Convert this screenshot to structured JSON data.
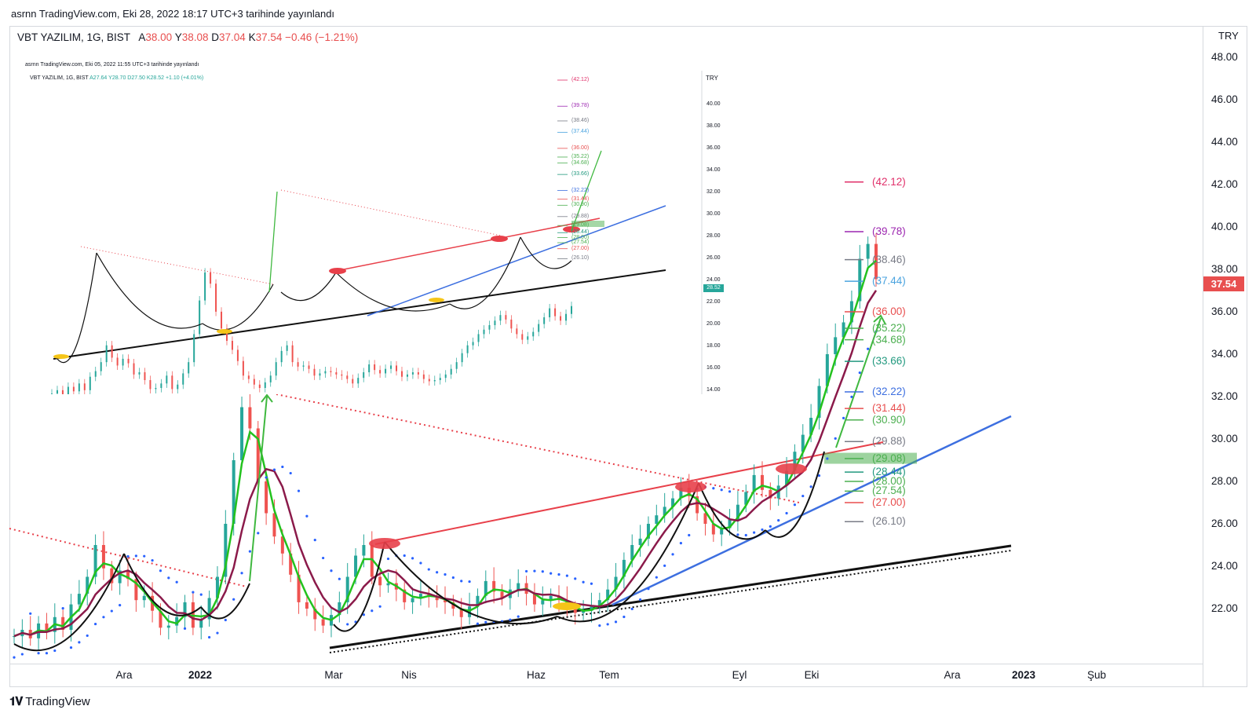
{
  "publish_header": "asrnn TradingView.com, Eki 28, 2022 18:17 UTC+3 tarihinde yayınlandı",
  "legend": {
    "symbol": "VBT YAZILIM, 1G, BIST",
    "a_label": "A",
    "a": "38.00",
    "y_label": "Y",
    "y": "38.08",
    "d_label": "D",
    "d": "37.04",
    "k_label": "K",
    "k": "37.54",
    "change": "−0.46 (−1.21%)"
  },
  "currency": "TRY",
  "last_price": "37.54",
  "footer_logo": "TradingView",
  "colors": {
    "up": "#26a69a",
    "down": "#ef5350",
    "accent_red": "#e84f4f",
    "trend_blue": "#3d6fe0",
    "ma_green": "#23c21e",
    "ma_maroon": "#8b1a4a"
  },
  "chart_data": {
    "type": "candlestick",
    "title": "VBT YAZILIM, 1G, BIST",
    "ylabel": "TRY",
    "ylim": [
      20.5,
      48.5
    ],
    "y_ticks": [
      "22.00",
      "24.00",
      "26.00",
      "28.00",
      "30.00",
      "32.00",
      "34.00",
      "36.00",
      "38.00",
      "40.00",
      "42.00",
      "44.00",
      "46.00",
      "48.00"
    ],
    "x_ticks": [
      {
        "label": "Ara",
        "bold": false
      },
      {
        "label": "2022",
        "bold": true
      },
      {
        "label": "Mar",
        "bold": false
      },
      {
        "label": "Nis",
        "bold": false
      },
      {
        "label": "Haz",
        "bold": false
      },
      {
        "label": "Tem",
        "bold": false
      },
      {
        "label": "Eyl",
        "bold": false
      },
      {
        "label": "Eki",
        "bold": false
      },
      {
        "label": "Ara",
        "bold": false
      },
      {
        "label": "2023",
        "bold": true
      },
      {
        "label": "Şub",
        "bold": false
      }
    ],
    "fib_levels": [
      {
        "label": "(42.12)",
        "value": 42.12,
        "color": "#e0306a"
      },
      {
        "label": "(39.78)",
        "value": 39.78,
        "color": "#9c27b0"
      },
      {
        "label": "(38.46)",
        "value": 38.46,
        "color": "#787b86"
      },
      {
        "label": "(37.44)",
        "value": 37.44,
        "color": "#4aa3df"
      },
      {
        "label": "(36.00)",
        "value": 36.0,
        "color": "#e84f4f"
      },
      {
        "label": "(35.22)",
        "value": 35.22,
        "color": "#4caf50"
      },
      {
        "label": "(34.68)",
        "value": 34.68,
        "color": "#4caf50"
      },
      {
        "label": "(33.66)",
        "value": 33.66,
        "color": "#22997f"
      },
      {
        "label": "(32.22)",
        "value": 32.22,
        "color": "#3d6fe0"
      },
      {
        "label": "(31.44)",
        "value": 31.44,
        "color": "#e84f4f"
      },
      {
        "label": "(30.90)",
        "value": 30.9,
        "color": "#4caf50"
      },
      {
        "label": "(29.88)",
        "value": 29.88,
        "color": "#787b86"
      },
      {
        "label": "(29.08)",
        "value": 29.08,
        "color": "#4caf50"
      },
      {
        "label": "(28.44)",
        "value": 28.44,
        "color": "#22997f"
      },
      {
        "label": "(28.00)",
        "value": 28.0,
        "color": "#4caf50"
      },
      {
        "label": "(27.54)",
        "value": 27.54,
        "color": "#4caf50"
      },
      {
        "label": "(27.00)",
        "value": 27.0,
        "color": "#e84f4f"
      },
      {
        "label": "(26.10)",
        "value": 26.1,
        "color": "#787b86"
      }
    ],
    "close_path": [
      20.7,
      21,
      20.6,
      21.3,
      20.9,
      21.6,
      21,
      22.2,
      22.7,
      23.5,
      25,
      23.9,
      23.2,
      23.8,
      23.4,
      22.4,
      22.6,
      21.9,
      21.1,
      21.2,
      21.6,
      22.3,
      21.1,
      21.5,
      22.5,
      23.5,
      26,
      29,
      31.5,
      30.5,
      28,
      26.5,
      25.4,
      24.6,
      23.6,
      22.3,
      22,
      21.5,
      21.2,
      21.7,
      22.3,
      23.5,
      24.5,
      25,
      23.5,
      23.1,
      23.2,
      22.9,
      22.3,
      22.5,
      22.7,
      22.6,
      22.4,
      22.3,
      22,
      21.6,
      22.1,
      22.6,
      23.3,
      22.8,
      22.5,
      22.9,
      23.2,
      22.7,
      22.2,
      22.4,
      22.6,
      22.4,
      22,
      21.8,
      21.9,
      22.1,
      22.4,
      22.9,
      23.5,
      24.3,
      25,
      25.3,
      26,
      26.4,
      26.8,
      27.2,
      27.7,
      27.3,
      26.5,
      26,
      25.5,
      25.8,
      26.2,
      26.9,
      27.5,
      28.3,
      27.6,
      27.2,
      27.8,
      28.5,
      29.4,
      30.2,
      31,
      32.5,
      34,
      34.8,
      35.5,
      36.5,
      38.5,
      39.2,
      37.54
    ]
  },
  "inset": {
    "publish_header": "asrnn TradingView.com, Eki 05, 2022 11:55 UTC+3 tarihinde yayınlandı",
    "legend": {
      "symbol": "VBT YAZILIM, 1G, BIST",
      "a": "A27.64",
      "y": "Y28.70",
      "d": "D27.50",
      "k": "K28.52",
      "change": "+1.10 (+4.01%)"
    },
    "currency": "TRY",
    "last_price": "28.52",
    "y_ticks": [
      "14.00",
      "16.00",
      "18.00",
      "20.00",
      "22.00",
      "24.00",
      "26.00",
      "28.00",
      "30.00",
      "32.00",
      "34.00",
      "36.00",
      "38.00",
      "40.00"
    ],
    "fib_labels": [
      "(42.12)",
      "(39.78)",
      "(38.46)",
      "(37.44)",
      "(36.00)",
      "(35.22)",
      "(34.68)",
      "(33.66)",
      "(32.22)",
      "(31.44)",
      "(30.90)",
      "(29.88)",
      "(29.08)",
      "(28.44)",
      "(28.00)",
      "(27.54)",
      "(27.00)",
      "(26.10)"
    ]
  }
}
